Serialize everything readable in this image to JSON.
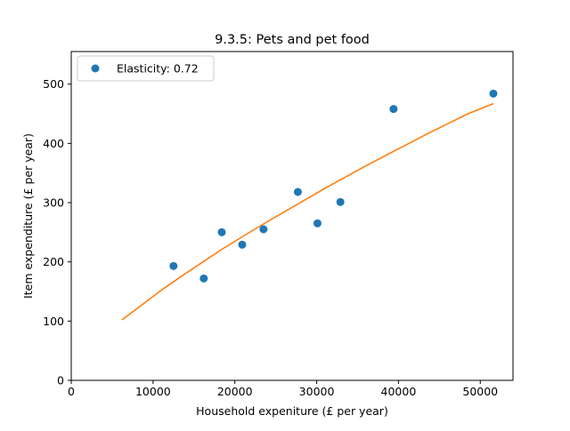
{
  "chart_data": {
    "type": "scatter",
    "title": "9.3.5: Pets and pet food",
    "xlabel": "Household expeniture (£ per year)",
    "ylabel": "Item expenditure (£ per year)",
    "xlim": [
      0,
      54000
    ],
    "ylim": [
      0,
      555
    ],
    "xticks": [
      0,
      10000,
      20000,
      30000,
      40000,
      50000
    ],
    "yticks": [
      0,
      100,
      200,
      300,
      400,
      500
    ],
    "grid": false,
    "legend_position": "top-left",
    "series": [
      {
        "name": "Elasticity: 0.72",
        "kind": "scatter",
        "color": "#1f77b4",
        "x": [
          12500,
          16200,
          18400,
          20900,
          23500,
          27700,
          30100,
          32900,
          39400,
          51600
        ],
        "y": [
          193,
          172,
          250,
          229,
          255,
          318,
          265,
          301,
          458,
          484
        ]
      },
      {
        "kind": "line",
        "color": "#ff7f0e",
        "x": [
          6200,
          8500,
          11000,
          13500,
          16000,
          18500,
          21000,
          23500,
          26000,
          28500,
          31000,
          33500,
          36000,
          38500,
          41000,
          43500,
          46000,
          48500,
          51600
        ],
        "y": [
          102,
          126,
          152,
          176,
          199,
          222,
          243,
          264,
          284,
          304,
          324,
          343,
          362,
          380,
          398,
          416,
          433,
          450,
          467
        ]
      }
    ]
  }
}
